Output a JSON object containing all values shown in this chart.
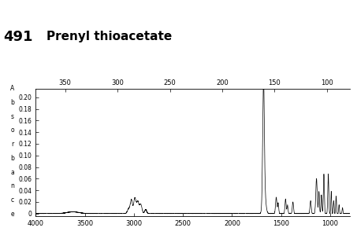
{
  "title": "Prenyl thioacetate",
  "id_label": "491",
  "top_axis_ticks_labels": [
    "350",
    "300",
    "250",
    "200",
    "150",
    "100"
  ],
  "top_axis_ticks_pos": [
    3700,
    3167,
    2633,
    2100,
    1567,
    1033
  ],
  "xmin": 4000,
  "xmax": 800,
  "ymin": -0.005,
  "ymax": 0.215,
  "ytick_vals": [
    0.0,
    0.02,
    0.04,
    0.06,
    0.08,
    0.1,
    0.12,
    0.14,
    0.16,
    0.18,
    0.2
  ],
  "ytick_labels": [
    "0",
    "0.02",
    "0.04",
    "0.06",
    "0.08",
    "0.10",
    "0.12",
    "0.14",
    "0.16",
    "0.18",
    "0.20"
  ],
  "xtick_vals": [
    4000,
    3500,
    3000,
    2500,
    2000,
    1500,
    1000
  ],
  "xtick_labels": [
    "4000",
    "3500",
    "3000",
    "2500",
    "2000",
    "1500",
    "1000"
  ],
  "background_color": "#ffffff",
  "line_color": "#000000",
  "title_fontsize": 11,
  "id_fontsize": 13,
  "ylabel_chars": [
    "A",
    "b",
    "s",
    "o",
    "r",
    "b",
    "a",
    "n",
    "c",
    "e"
  ]
}
